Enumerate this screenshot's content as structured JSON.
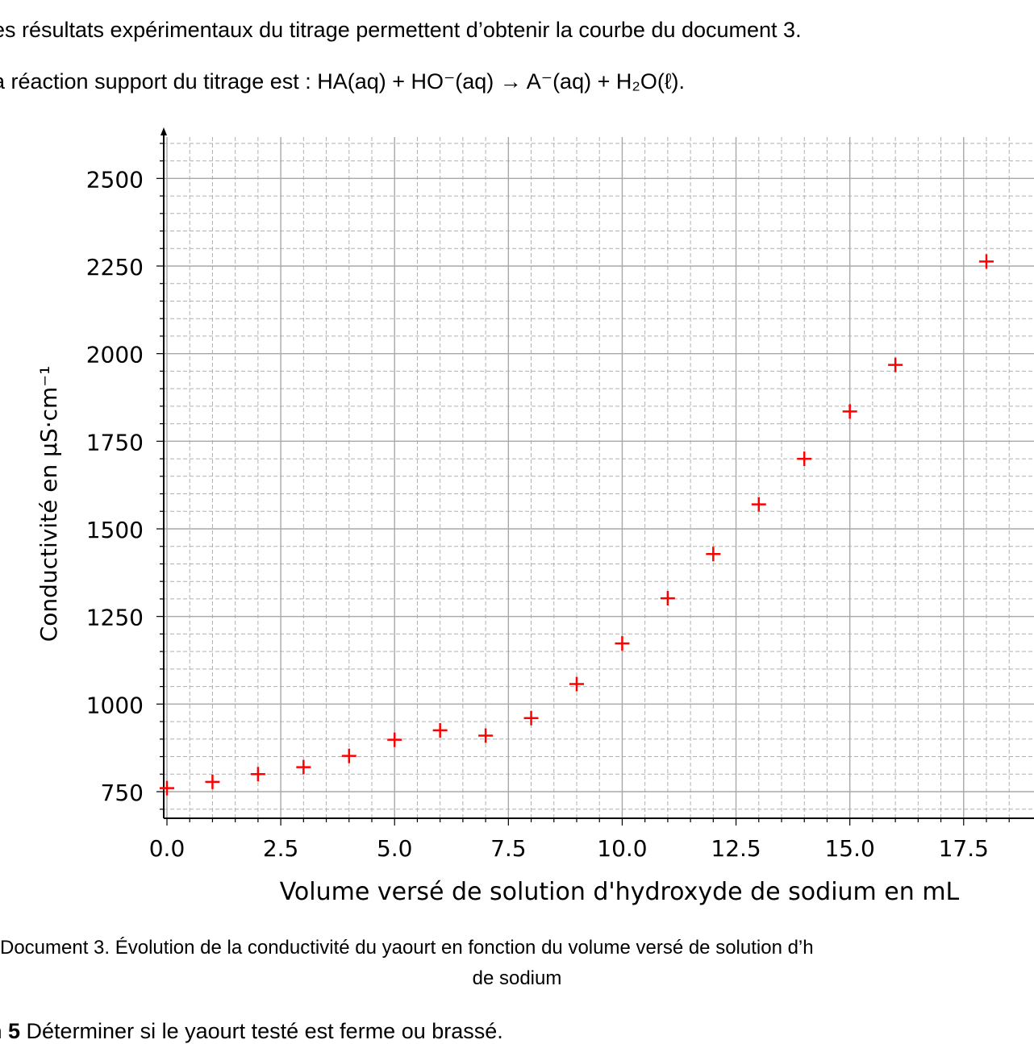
{
  "intro": {
    "line1": "es résultats expérimentaux du titrage permettent d’obtenir la courbe du document 3.",
    "line2": "a réaction support du titrage est : HA(aq)  +  HO⁻(aq)  →  A⁻(aq) + H₂O(ℓ)."
  },
  "caption": {
    "line1": "Document 3. Évolution de la conductivité du yaourt en fonction du volume versé de solution d’h",
    "line2": "de sodium"
  },
  "question": {
    "number": "n 5",
    "text": "Déterminer si le yaourt testé est ferme ou brassé."
  },
  "chart_data": {
    "type": "scatter",
    "xlabel": "Volume versé de solution d'hydroxyde de sodium en mL",
    "ylabel": "Conductivité en µS·cm⁻¹",
    "xlim": [
      0,
      18.5
    ],
    "ylim": [
      680,
      2620
    ],
    "x_ticks": [
      "0.0",
      "2.5",
      "5.0",
      "7.5",
      "10.0",
      "12.5",
      "15.0",
      "17.5"
    ],
    "y_ticks": [
      "750",
      "1000",
      "1250",
      "1500",
      "1750",
      "2000",
      "2250",
      "2500"
    ],
    "grid": true,
    "marker": "plus",
    "color": "#ff0000",
    "series": [
      {
        "x": [
          0,
          1,
          2,
          3,
          4,
          5,
          6,
          7,
          8,
          9,
          10,
          11,
          12,
          13,
          14,
          15,
          16,
          18
        ],
        "y": [
          760,
          778,
          800,
          820,
          852,
          898,
          925,
          910,
          960,
          1057,
          1173,
          1302,
          1428,
          1570,
          1700,
          1835,
          1968,
          2263
        ]
      }
    ]
  }
}
